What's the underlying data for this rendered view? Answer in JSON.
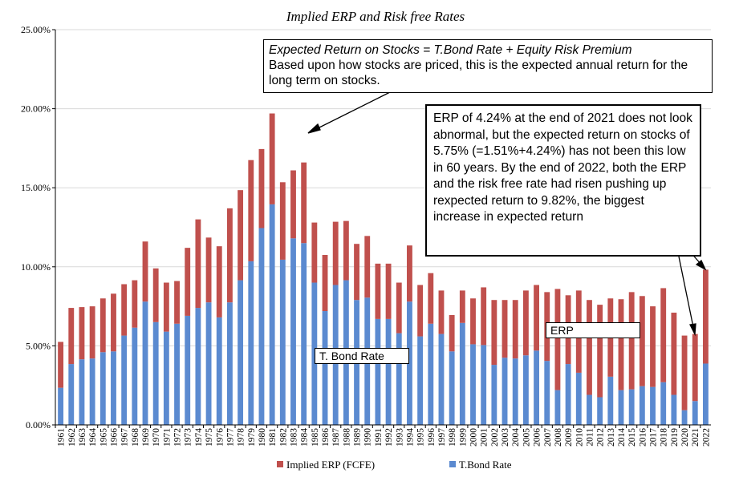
{
  "chart_data": {
    "type": "bar",
    "stacked": true,
    "title": "Implied ERP and Risk free Rates",
    "xlabel": "",
    "ylabel": "",
    "ylim": [
      0,
      25
    ],
    "y_ticks": [
      "0.00%",
      "5.00%",
      "10.00%",
      "15.00%",
      "20.00%",
      "25.00%"
    ],
    "categories": [
      "1961",
      "1962",
      "1963",
      "1964",
      "1965",
      "1966",
      "1967",
      "1968",
      "1969",
      "1970",
      "1971",
      "1972",
      "1973",
      "1974",
      "1975",
      "1976",
      "1977",
      "1978",
      "1979",
      "1980",
      "1981",
      "1982",
      "1983",
      "1984",
      "1985",
      "1986",
      "1987",
      "1988",
      "1989",
      "1990",
      "1991",
      "1992",
      "1993",
      "1994",
      "1995",
      "1996",
      "1997",
      "1998",
      "1999",
      "2000",
      "2001",
      "2002",
      "2003",
      "2004",
      "2005",
      "2006",
      "2007",
      "2008",
      "2009",
      "2010",
      "2011",
      "2012",
      "2013",
      "2014",
      "2015",
      "2016",
      "2017",
      "2018",
      "2019",
      "2020",
      "2021",
      "2022"
    ],
    "series": [
      {
        "name": "T.Bond Rate",
        "color": "#5b8ad0",
        "values": [
          2.35,
          3.85,
          4.15,
          4.2,
          4.6,
          4.65,
          5.65,
          6.15,
          7.8,
          6.5,
          5.9,
          6.4,
          6.9,
          7.4,
          7.75,
          6.8,
          7.75,
          9.15,
          10.35,
          12.45,
          13.95,
          10.45,
          11.8,
          11.5,
          9.0,
          7.2,
          8.85,
          9.15,
          7.9,
          8.05,
          6.7,
          6.7,
          5.8,
          7.8,
          5.6,
          6.4,
          5.75,
          4.65,
          6.45,
          5.1,
          5.05,
          3.8,
          4.25,
          4.2,
          4.4,
          4.7,
          4.05,
          2.2,
          3.85,
          3.3,
          1.9,
          1.75,
          3.05,
          2.2,
          2.25,
          2.45,
          2.4,
          2.7,
          1.9,
          0.93,
          1.51,
          3.88
        ]
      },
      {
        "name": "Implied ERP (FCFE)",
        "color": "#c0504d",
        "values": [
          2.9,
          3.55,
          3.3,
          3.3,
          3.4,
          3.65,
          3.25,
          3.0,
          3.8,
          3.4,
          3.1,
          2.7,
          4.3,
          5.6,
          4.1,
          4.5,
          5.95,
          5.7,
          6.4,
          5.0,
          5.75,
          4.9,
          4.3,
          5.1,
          3.8,
          3.55,
          4.0,
          3.75,
          3.55,
          3.9,
          3.5,
          3.5,
          3.2,
          3.55,
          3.25,
          3.2,
          2.75,
          2.3,
          2.05,
          2.9,
          3.65,
          4.1,
          3.65,
          3.7,
          4.1,
          4.15,
          4.35,
          6.4,
          4.35,
          5.2,
          6.0,
          5.85,
          4.95,
          5.75,
          6.15,
          5.7,
          5.1,
          5.95,
          5.2,
          4.72,
          4.24,
          5.94
        ]
      }
    ],
    "legend": {
      "position": "bottom",
      "entries": [
        "Implied ERP (FCFE)",
        "T.Bond Rate"
      ]
    }
  },
  "annotations": {
    "main_headline": "Expected Return on Stocks = T.Bond Rate + Equity Risk Premium",
    "main_body": "Based upon how stocks are priced, this is the expected annual return for the long term on stocks.",
    "right_body": "ERP of 4.24% at the end of 2021 does not look abnormal, but the expected return on stocks of 5.75% (=1.51%+4.24%) has not been this low in 60 years. By the end of 2022, both the ERP and the risk free rate had risen pushing up rexpected return to 9.82%, the biggest increase in expected return",
    "tbond_label": "T. Bond Rate",
    "erp_label": "ERP"
  }
}
